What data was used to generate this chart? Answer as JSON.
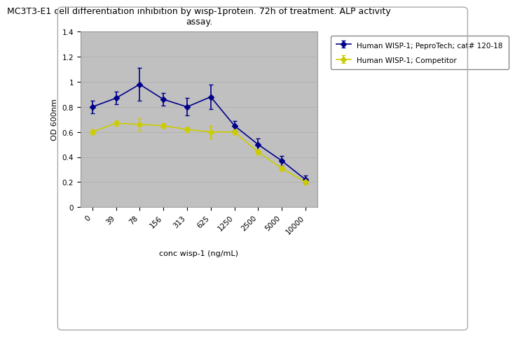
{
  "title": "MC3T3-E1 cell differentiation inhibition by wisp-1protein. 72h of treatment. ALP activity\nassay.",
  "xlabel": "conc wisp-1 (ng/mL)",
  "ylabel": "OD 600nm",
  "x_labels": [
    "0",
    "39",
    "78",
    "156",
    "313",
    "625",
    "1250",
    "2500",
    "5000",
    "10000"
  ],
  "x_positions": [
    0,
    1,
    2,
    3,
    4,
    5,
    6,
    7,
    8,
    9
  ],
  "series1_name": "Human WISP-1; PeproTech; cat# 120-18",
  "series1_color": "#00008B",
  "series1_y": [
    0.8,
    0.87,
    0.98,
    0.86,
    0.8,
    0.88,
    0.65,
    0.5,
    0.37,
    0.22
  ],
  "series1_yerr": [
    0.05,
    0.05,
    0.13,
    0.05,
    0.07,
    0.1,
    0.04,
    0.05,
    0.04,
    0.03
  ],
  "series2_name": "Human WISP-1; Competitor",
  "series2_color": "#CCCC00",
  "series2_y": [
    0.6,
    0.67,
    0.66,
    0.65,
    0.62,
    0.6,
    0.6,
    0.44,
    0.31,
    0.2
  ],
  "series2_yerr": [
    0.02,
    0.02,
    0.05,
    0.02,
    0.02,
    0.05,
    0.02,
    0.02,
    0.02,
    0.02
  ],
  "ylim": [
    0,
    1.4
  ],
  "yticks": [
    0,
    0.2,
    0.4,
    0.6,
    0.8,
    1.0,
    1.2,
    1.4
  ],
  "plot_bg": "#C0C0C0",
  "fig_bg": "#FFFFFF",
  "border_color": "#AAAAAA",
  "title_fontsize": 9,
  "label_fontsize": 8,
  "tick_fontsize": 7.5,
  "legend_fontsize": 7.5,
  "marker": "D",
  "marker_size": 4,
  "line_width": 1.2
}
